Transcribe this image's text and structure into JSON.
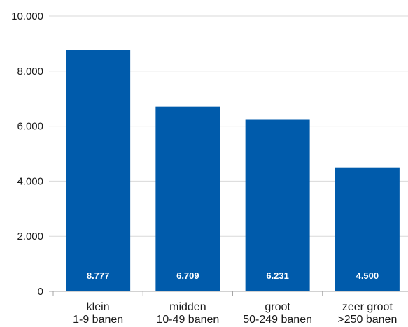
{
  "chart_data": {
    "type": "bar",
    "categories": [
      [
        "klein",
        "1-9 banen"
      ],
      [
        "midden",
        "10-49 banen"
      ],
      [
        "groot",
        "50-249 banen"
      ],
      [
        "zeer groot",
        ">250 banen"
      ]
    ],
    "values": [
      8777,
      6709,
      6231,
      4500
    ],
    "value_labels": [
      "8.777",
      "6.709",
      "6.231",
      "4.500"
    ],
    "y_ticks": [
      0,
      2000,
      4000,
      6000,
      8000,
      10000
    ],
    "y_tick_labels": [
      "0",
      "2.000",
      "4.000",
      "6.000",
      "8.000",
      "10.000"
    ],
    "ylim": [
      0,
      10000
    ],
    "grid": true,
    "colors": {
      "bar": "#005bab",
      "grid": "#d9d9d9",
      "axis": "#a6a6a6"
    }
  }
}
